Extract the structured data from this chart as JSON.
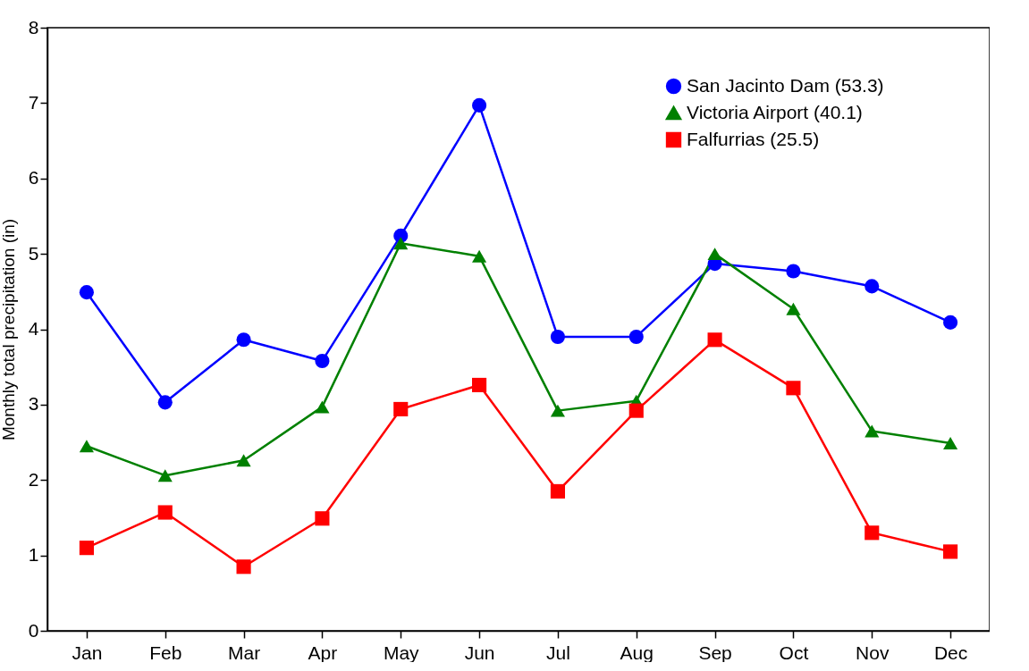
{
  "chart_data": {
    "type": "line",
    "ylabel": "Monthly total precipitation (in)",
    "categories": [
      "Jan",
      "Feb",
      "Mar",
      "Apr",
      "May",
      "Jun",
      "Jul",
      "Aug",
      "Sep",
      "Oct",
      "Nov",
      "Dec"
    ],
    "series": [
      {
        "name": "San Jacinto Dam (53.3)",
        "color": "#0000ff",
        "marker": "circle",
        "values": [
          4.49,
          3.03,
          3.86,
          3.58,
          5.24,
          6.97,
          3.9,
          3.9,
          4.87,
          4.77,
          4.57,
          4.09
        ]
      },
      {
        "name": "Victoria Airport (40.1)",
        "color": "#008000",
        "marker": "triangle",
        "values": [
          2.45,
          2.06,
          2.26,
          2.97,
          5.14,
          4.97,
          2.92,
          3.05,
          5.0,
          4.27,
          2.65,
          2.49
        ]
      },
      {
        "name": "Falfurrias (25.5)",
        "color": "#ff0000",
        "marker": "square",
        "values": [
          1.1,
          1.57,
          0.85,
          1.49,
          2.94,
          3.26,
          1.85,
          2.92,
          3.86,
          3.22,
          1.3,
          1.05
        ]
      }
    ],
    "ylim": [
      0,
      8
    ],
    "yticks": [
      0,
      1,
      2,
      3,
      4,
      5,
      6,
      7,
      8
    ],
    "grid": false,
    "legend": "top right",
    "line_style": "solid"
  }
}
